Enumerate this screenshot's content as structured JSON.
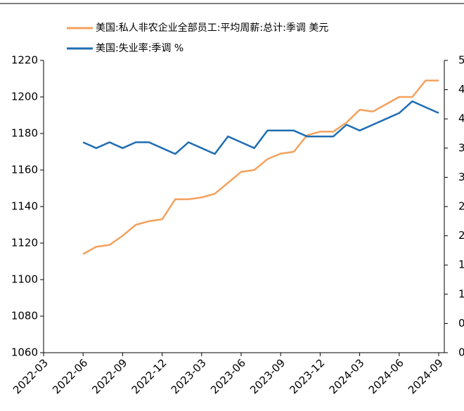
{
  "chart_data": {
    "type": "line",
    "categories": [
      "2022-03",
      null,
      null,
      "2022-06",
      null,
      null,
      "2022-09",
      null,
      null,
      "2022-12",
      null,
      null,
      "2023-03",
      null,
      null,
      "2023-06",
      null,
      null,
      "2023-09",
      null,
      null,
      "2023-12",
      null,
      null,
      "2024-03",
      null,
      null,
      "2024-06",
      null,
      null,
      "2024-09"
    ],
    "series": [
      {
        "name": "美国:私人非农企业全部员工:平均周薪:总计:季调 美元",
        "color": "#f4a15d",
        "axis": "y",
        "values": [
          null,
          null,
          null,
          1114,
          1118,
          1119,
          1124,
          1130,
          1132,
          1133,
          1144,
          1144,
          1145,
          1147,
          1153,
          1159,
          1160,
          1166,
          1169,
          1170,
          1179,
          1181,
          1181,
          1186,
          1193,
          1192,
          1196,
          1200,
          1200,
          1209,
          1209
        ]
      },
      {
        "name": "美国:失业率:季调 %",
        "color": "#1f6db3",
        "axis": "y2",
        "values": [
          null,
          null,
          null,
          3.6,
          3.5,
          3.6,
          3.5,
          3.6,
          3.6,
          3.5,
          3.4,
          3.6,
          3.5,
          3.4,
          3.7,
          3.6,
          3.5,
          3.8,
          3.8,
          3.8,
          3.7,
          3.7,
          3.7,
          3.9,
          3.8,
          3.9,
          4.0,
          4.1,
          4.3,
          4.2,
          4.1
        ]
      }
    ],
    "ylim": [
      1060,
      1220
    ],
    "yticks": [
      1060,
      1080,
      1100,
      1120,
      1140,
      1160,
      1180,
      1200,
      1220
    ],
    "y2lim": [
      0,
      5
    ],
    "y2ticks": [
      0,
      0.5,
      1,
      1.5,
      2,
      2.5,
      3,
      3.5,
      4,
      4.5,
      5
    ],
    "legend": "top"
  }
}
